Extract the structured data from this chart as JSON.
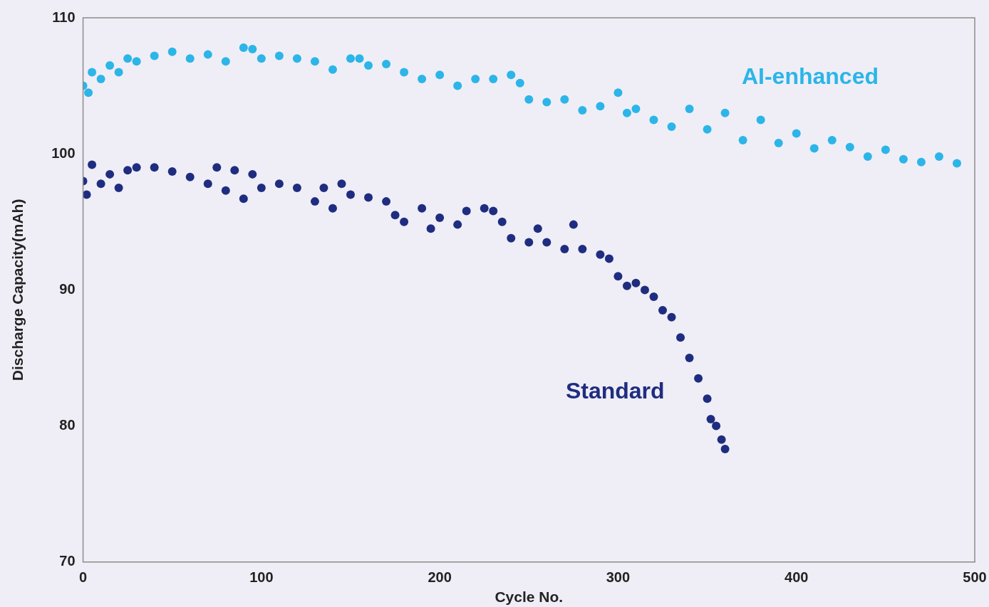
{
  "chart_data": {
    "type": "scatter",
    "xlabel": "Cycle No.",
    "ylabel": "Discharge Capacity(mAh)",
    "xlim": [
      0,
      500
    ],
    "xticks": [
      0,
      100,
      200,
      300,
      400,
      500
    ],
    "ylim": [
      70,
      110
    ],
    "yticks": [
      70,
      80,
      90,
      100,
      110
    ],
    "marker": "circle",
    "series": [
      {
        "name": "AI-enhanced",
        "color": "#2cb5e8",
        "x": [
          0,
          3,
          5,
          10,
          15,
          20,
          25,
          30,
          40,
          50,
          60,
          70,
          80,
          90,
          95,
          100,
          110,
          120,
          130,
          140,
          150,
          155,
          160,
          170,
          180,
          190,
          200,
          210,
          220,
          230,
          240,
          245,
          250,
          260,
          270,
          280,
          290,
          300,
          305,
          310,
          320,
          330,
          340,
          350,
          360,
          370,
          380,
          390,
          400,
          410,
          420,
          430,
          440,
          450,
          460,
          470,
          480,
          490
        ],
        "values": [
          105,
          104.5,
          106,
          105.5,
          106.5,
          106,
          107,
          106.8,
          107.2,
          107.5,
          107,
          107.3,
          106.8,
          107.8,
          107.7,
          107,
          107.2,
          107,
          106.8,
          106.2,
          107,
          107,
          106.5,
          106.6,
          106,
          105.5,
          105.8,
          105,
          105.5,
          105.5,
          105.8,
          105.2,
          104,
          103.8,
          104,
          103.2,
          103.5,
          104.5,
          103,
          103.3,
          102.5,
          102,
          103.3,
          101.8,
          103,
          101,
          102.5,
          100.8,
          101.5,
          100.4,
          101,
          100.5,
          99.8,
          100.3,
          99.6,
          99.4,
          99.8,
          99.3
        ]
      },
      {
        "name": "Standard",
        "color": "#1f2d80",
        "x": [
          0,
          2,
          5,
          10,
          15,
          20,
          25,
          30,
          40,
          50,
          60,
          70,
          75,
          80,
          85,
          90,
          95,
          100,
          110,
          120,
          130,
          135,
          140,
          145,
          150,
          160,
          170,
          175,
          180,
          190,
          195,
          200,
          210,
          215,
          225,
          230,
          235,
          240,
          250,
          255,
          260,
          270,
          275,
          280,
          290,
          295,
          300,
          305,
          310,
          315,
          320,
          325,
          330,
          335,
          340,
          345,
          350,
          352,
          355,
          358,
          360
        ],
        "values": [
          98,
          97,
          99.2,
          97.8,
          98.5,
          97.5,
          98.8,
          99,
          99,
          98.7,
          98.3,
          97.8,
          99,
          97.3,
          98.8,
          96.7,
          98.5,
          97.5,
          97.8,
          97.5,
          96.5,
          97.5,
          96,
          97.8,
          97,
          96.8,
          96.5,
          95.5,
          95,
          96,
          94.5,
          95.3,
          94.8,
          95.8,
          96,
          95.8,
          95,
          93.8,
          93.5,
          94.5,
          93.5,
          93,
          94.8,
          93,
          92.6,
          92.3,
          91,
          90.3,
          90.5,
          90,
          89.5,
          88.5,
          88,
          86.5,
          85,
          83.5,
          82,
          80.5,
          80,
          79,
          78.3
        ]
      }
    ]
  }
}
